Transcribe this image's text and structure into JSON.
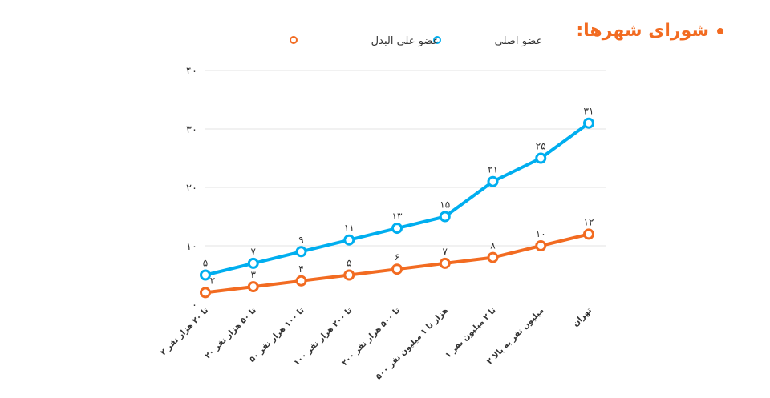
{
  "title": "شورای شهرها:",
  "colors": {
    "primary": "#00aeef",
    "alternate": "#f26b21",
    "grid": "#e3e3e3",
    "text": "#333333"
  },
  "chart_data": {
    "type": "line",
    "categories": [
      "۲ تا ۲۰ هزار نفر",
      "۲۰ تا ۵۰ هزار نفر",
      "۵۰ تا ۱۰۰ هزار نفر",
      "۱۰۰ تا ۲۰۰ هزار نفر",
      "۲۰۰ تا ۵۰۰ هزار نفر",
      "۵۰۰ هزار تا ۱ میلیون نفر",
      "۱ تا ۲ میلیون نفر",
      "۲ میلیون نفر به بالا",
      "تهران"
    ],
    "series": [
      {
        "name": "عضو اصلی",
        "values": [
          5,
          7,
          9,
          11,
          13,
          15,
          21,
          25,
          31
        ],
        "labels": [
          "۵",
          "۷",
          "۹",
          "۱۱",
          "۱۳",
          "۱۵",
          "۲۱",
          "۲۵",
          "۳۱"
        ]
      },
      {
        "name": "عضو علی البدل",
        "values": [
          2,
          3,
          4,
          5,
          6,
          7,
          8,
          10,
          12
        ],
        "labels": [
          "۲",
          "۳",
          "۴",
          "۵",
          "۶",
          "۷",
          "۸",
          "۱۰",
          "۱۲"
        ]
      }
    ],
    "ylim": [
      0,
      40
    ],
    "yticks": [
      0,
      10,
      20,
      30,
      40
    ],
    "ytick_labels": [
      "۰",
      "۱۰",
      "۲۰",
      "۳۰",
      "۴۰"
    ],
    "grid": true,
    "legend_position": "top"
  }
}
